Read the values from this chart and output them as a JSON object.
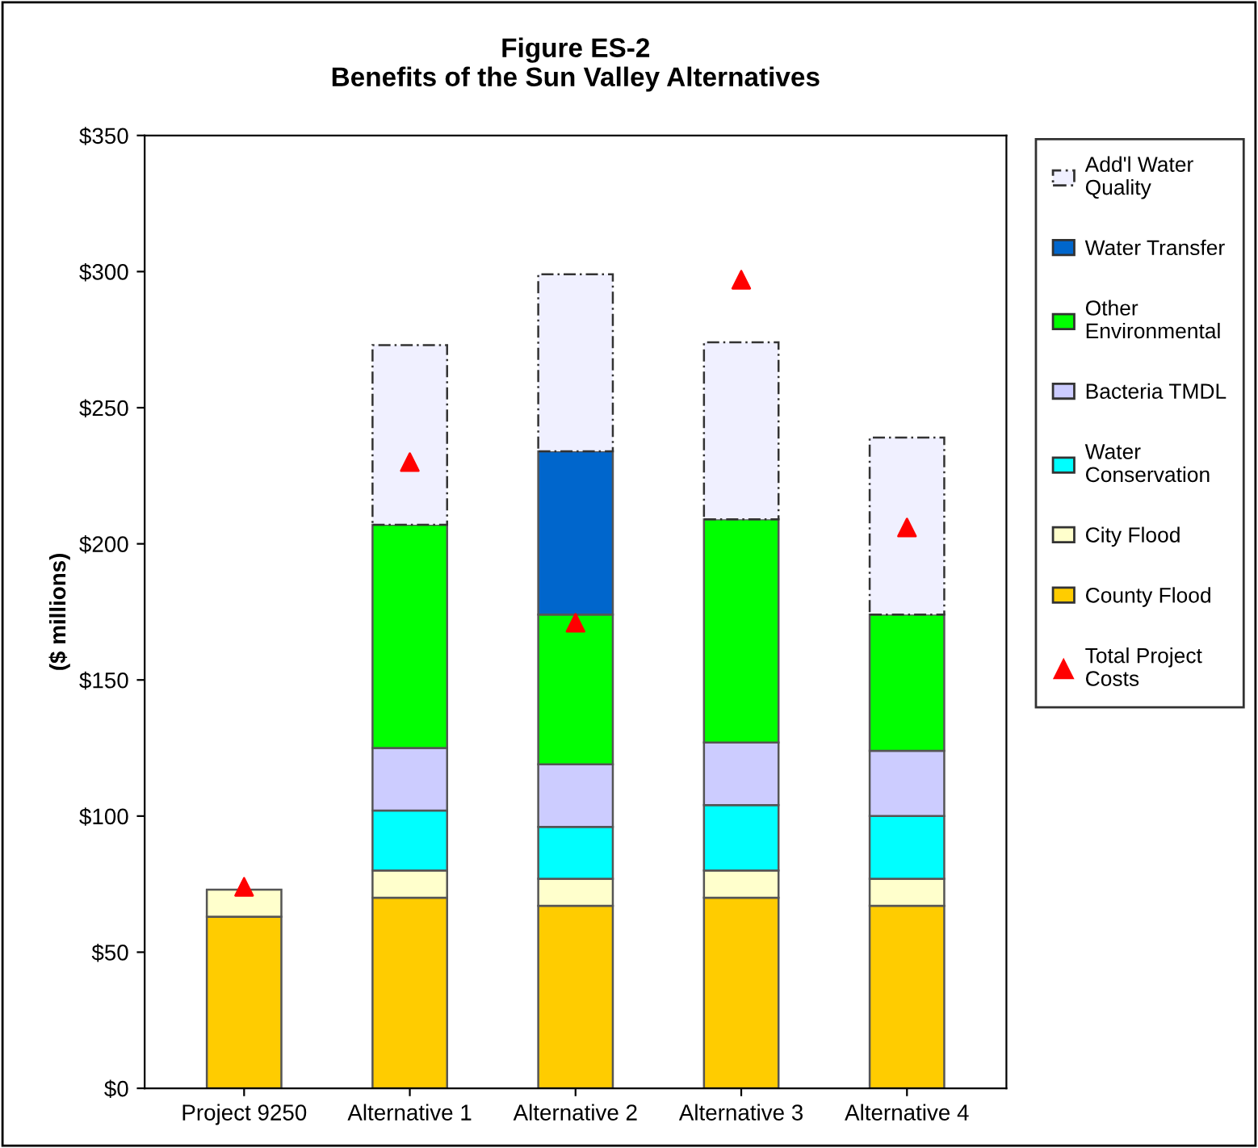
{
  "chart_data": {
    "type": "bar",
    "title": "Figure ES-2\nBenefits of the Sun Valley Alternatives",
    "ylabel": "($ millions)",
    "categories": [
      "Project 9250",
      "Alternative 1",
      "Alternative 2",
      "Alternative 3",
      "Alternative 4"
    ],
    "stacked": true,
    "series": [
      {
        "name": "County Flood",
        "color": "#ffcc00",
        "values": [
          63,
          70,
          67,
          70,
          67
        ]
      },
      {
        "name": "City Flood",
        "color": "#ffffcc",
        "values": [
          10,
          10,
          10,
          10,
          10
        ]
      },
      {
        "name": "Water\nConservation",
        "color": "#00ffff",
        "values": [
          null,
          22,
          19,
          24,
          23
        ]
      },
      {
        "name": "Bacteria TMDL",
        "color": "#ccccff",
        "values": [
          null,
          23,
          23,
          23,
          24
        ]
      },
      {
        "name": "Other\nEnvironmental",
        "color": "#00ff00",
        "values": [
          null,
          82,
          55,
          82,
          50
        ]
      },
      {
        "name": "Water Transfer",
        "color": "#0066cc",
        "values": [
          null,
          null,
          60,
          null,
          null
        ]
      },
      {
        "name": "Add'l Water\nQuality",
        "color": "#f0f0ff",
        "line_style": "dashed",
        "values": [
          null,
          66,
          65,
          65,
          65
        ]
      },
      {
        "name": "Total Project\nCosts",
        "type": "scatter",
        "marker": "triangle",
        "color": "#ff0000",
        "x": [
          "Project 9250",
          "Alternative 1",
          "Alternative 2",
          "Alternative 3",
          "Alternative 4"
        ],
        "values": [
          74,
          230,
          171,
          297,
          206
        ]
      }
    ],
    "ylim": [
      0,
      350
    ],
    "yticks": [
      {
        "value": 0,
        "label": "$0"
      },
      {
        "value": 50,
        "label": "$50"
      },
      {
        "value": 100,
        "label": "$100"
      },
      {
        "value": 150,
        "label": "$150"
      },
      {
        "value": 200,
        "label": "$200"
      },
      {
        "value": 250,
        "label": "$250"
      },
      {
        "value": 300,
        "label": "$300"
      },
      {
        "value": 350,
        "label": "$350"
      }
    ],
    "grid": false,
    "legend": "right"
  }
}
